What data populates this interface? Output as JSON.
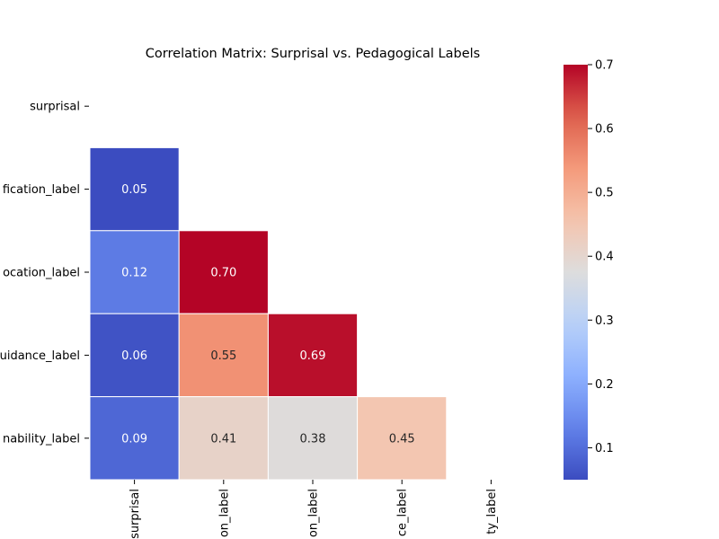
{
  "chart_data": {
    "type": "heatmap",
    "title": "Correlation Matrix: Surprisal vs. Pedagogical Labels",
    "xlabel": "",
    "ylabel": "",
    "row_labels": [
      "surprisal",
      "fication_label",
      "ocation_label",
      "uidance_label",
      "nability_label"
    ],
    "col_labels": [
      "surprisal",
      "on_label",
      "on_label",
      "ce_label",
      "ty_label"
    ],
    "values": [
      [
        null,
        null,
        null,
        null,
        null
      ],
      [
        0.05,
        null,
        null,
        null,
        null
      ],
      [
        0.12,
        0.7,
        null,
        null,
        null
      ],
      [
        0.06,
        0.55,
        0.69,
        null,
        null
      ],
      [
        0.09,
        0.41,
        0.38,
        0.45,
        null
      ]
    ],
    "value_labels": [
      [
        null,
        null,
        null,
        null,
        null
      ],
      [
        "0.05",
        null,
        null,
        null,
        null
      ],
      [
        "0.12",
        "0.70",
        null,
        null,
        null
      ],
      [
        "0.06",
        "0.55",
        "0.69",
        null,
        null
      ],
      [
        "0.09",
        "0.41",
        "0.38",
        "0.45",
        null
      ]
    ],
    "colormap": "coolwarm",
    "vmin": 0.05,
    "vmax": 0.7,
    "colorbar": {
      "ticks": [
        0.1,
        0.2,
        0.3,
        0.4,
        0.5,
        0.6,
        0.7
      ],
      "tick_labels": [
        "0.1",
        "0.2",
        "0.3",
        "0.4",
        "0.5",
        "0.6",
        "0.7"
      ]
    },
    "mask": "upper-triangle",
    "grid": false,
    "legend": "colorbar-right"
  }
}
